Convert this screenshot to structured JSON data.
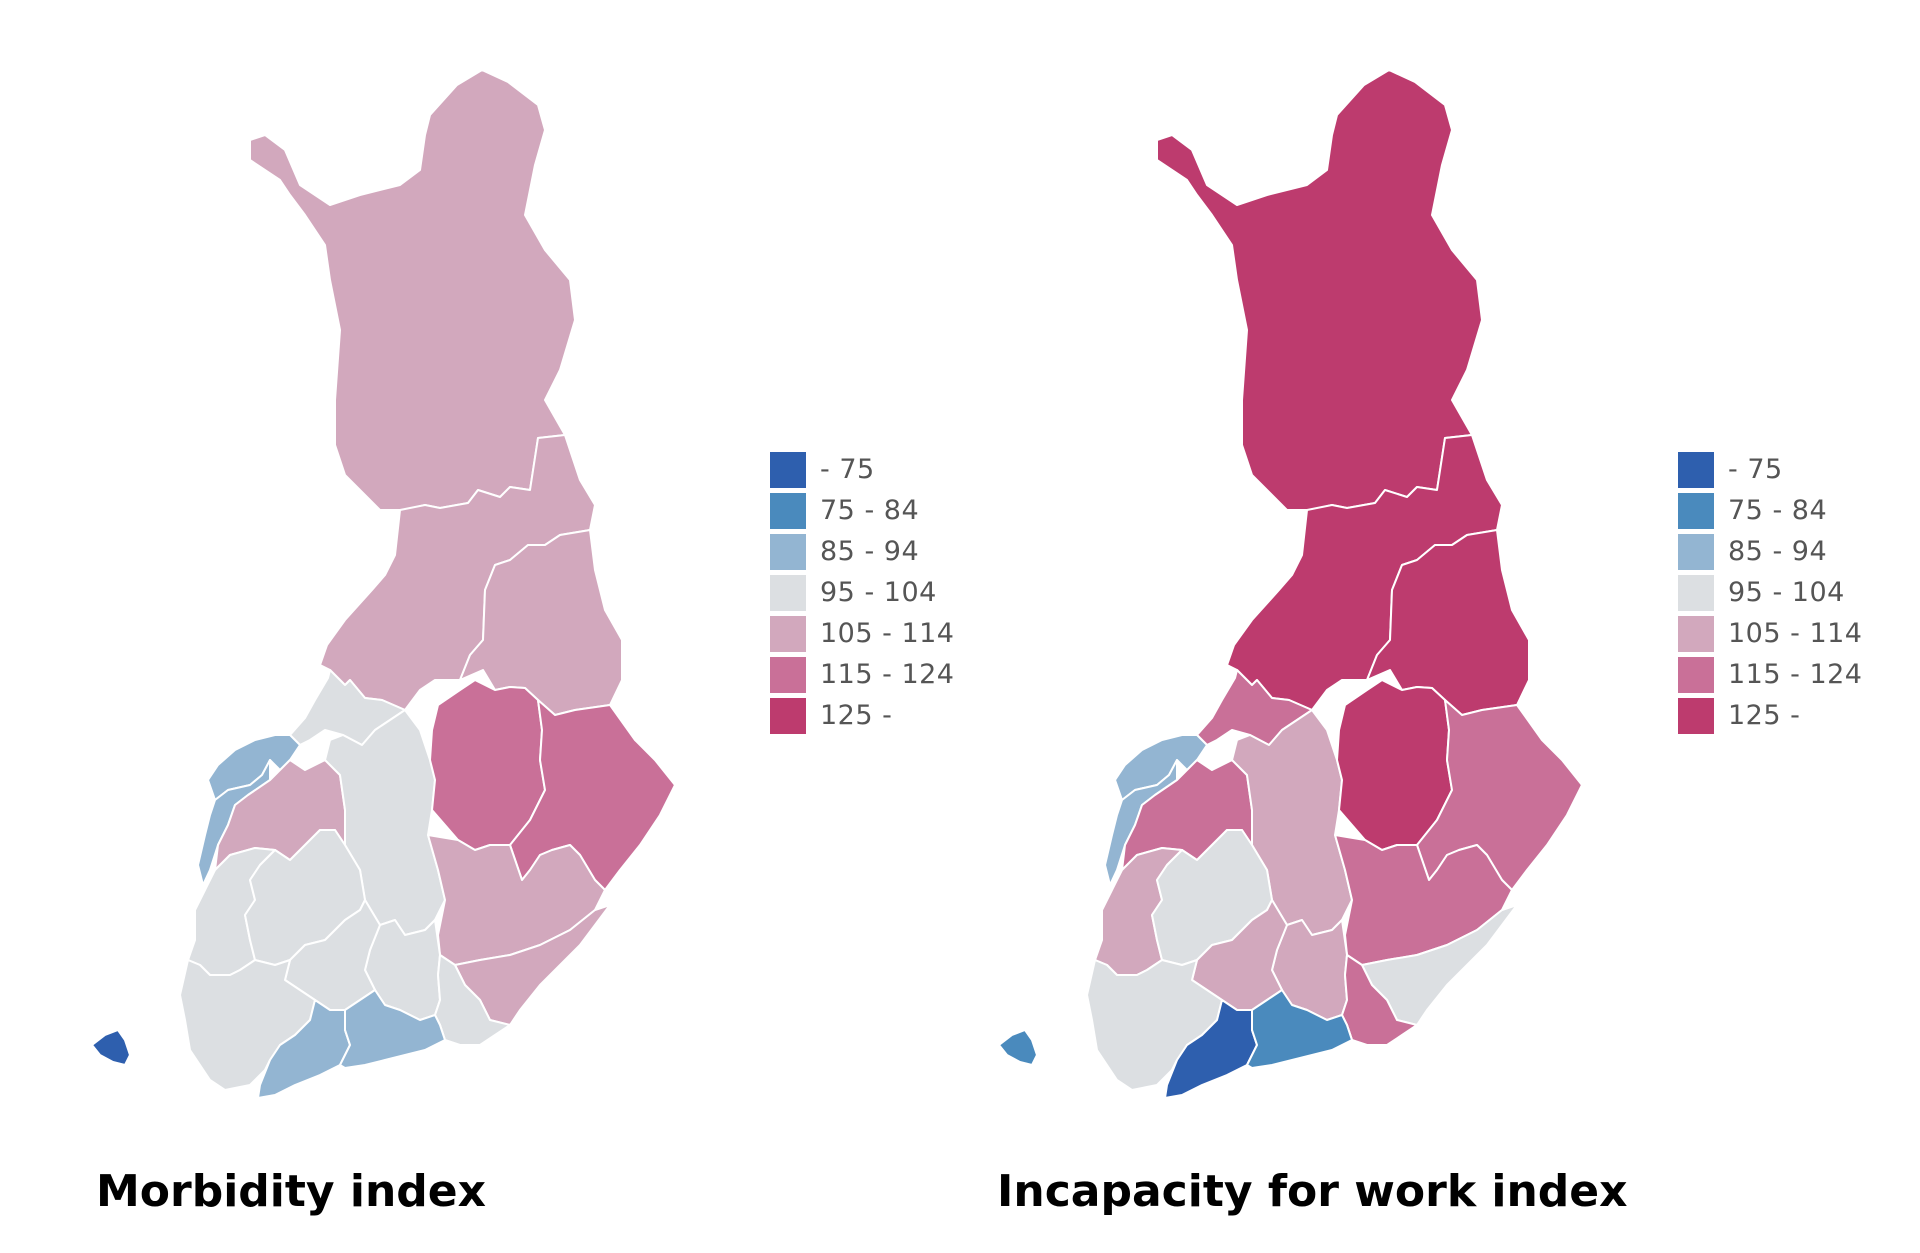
{
  "legend": {
    "bins": [
      {
        "label": "- 75",
        "color": "#2e5fae"
      },
      {
        "label": "75 - 84",
        "color": "#4a8abd"
      },
      {
        "label": "85 - 94",
        "color": "#93b5d2"
      },
      {
        "label": "95 - 104",
        "color": "#dcdfe2"
      },
      {
        "label": "105 - 114",
        "color": "#d2a8bd"
      },
      {
        "label": "115 - 124",
        "color": "#c97098"
      },
      {
        "label": "125 -",
        "color": "#bd3b6e"
      }
    ]
  },
  "maps": [
    {
      "title": "Morbidity index",
      "regions": [
        {
          "name": "lapland",
          "bin": 4
        },
        {
          "name": "north-ostrobothnia",
          "bin": 4
        },
        {
          "name": "kainuu",
          "bin": 4
        },
        {
          "name": "central-ostrobothnia",
          "bin": 3
        },
        {
          "name": "ostrobothnia-north",
          "bin": 2
        },
        {
          "name": "ostrobothnia-south",
          "bin": 2
        },
        {
          "name": "south-ostrobothnia",
          "bin": 4
        },
        {
          "name": "central-finland",
          "bin": 3
        },
        {
          "name": "north-savo",
          "bin": 5
        },
        {
          "name": "north-karelia",
          "bin": 5
        },
        {
          "name": "south-savo",
          "bin": 4
        },
        {
          "name": "satakunta",
          "bin": 3
        },
        {
          "name": "pirkanmaa",
          "bin": 3
        },
        {
          "name": "paijat-hame",
          "bin": 3
        },
        {
          "name": "kanta-hame",
          "bin": 3
        },
        {
          "name": "southwest-finland",
          "bin": 3
        },
        {
          "name": "south-karelia",
          "bin": 4
        },
        {
          "name": "kymenlaakso",
          "bin": 3
        },
        {
          "name": "uusimaa-west",
          "bin": 2
        },
        {
          "name": "uusimaa-east",
          "bin": 2
        },
        {
          "name": "aland",
          "bin": 0
        }
      ]
    },
    {
      "title": "Incapacity for work index",
      "regions": [
        {
          "name": "lapland",
          "bin": 6
        },
        {
          "name": "north-ostrobothnia",
          "bin": 6
        },
        {
          "name": "kainuu",
          "bin": 6
        },
        {
          "name": "central-ostrobothnia",
          "bin": 5
        },
        {
          "name": "ostrobothnia-north",
          "bin": 2
        },
        {
          "name": "ostrobothnia-south",
          "bin": 2
        },
        {
          "name": "south-ostrobothnia",
          "bin": 5
        },
        {
          "name": "central-finland",
          "bin": 4
        },
        {
          "name": "north-savo",
          "bin": 6
        },
        {
          "name": "north-karelia",
          "bin": 5
        },
        {
          "name": "south-savo",
          "bin": 5
        },
        {
          "name": "satakunta",
          "bin": 4
        },
        {
          "name": "pirkanmaa",
          "bin": 3
        },
        {
          "name": "paijat-hame",
          "bin": 4
        },
        {
          "name": "kanta-hame",
          "bin": 4
        },
        {
          "name": "southwest-finland",
          "bin": 3
        },
        {
          "name": "south-karelia",
          "bin": 3
        },
        {
          "name": "kymenlaakso",
          "bin": 5
        },
        {
          "name": "uusimaa-west",
          "bin": 0
        },
        {
          "name": "uusimaa-east",
          "bin": 1
        },
        {
          "name": "aland",
          "bin": 1
        }
      ]
    }
  ]
}
